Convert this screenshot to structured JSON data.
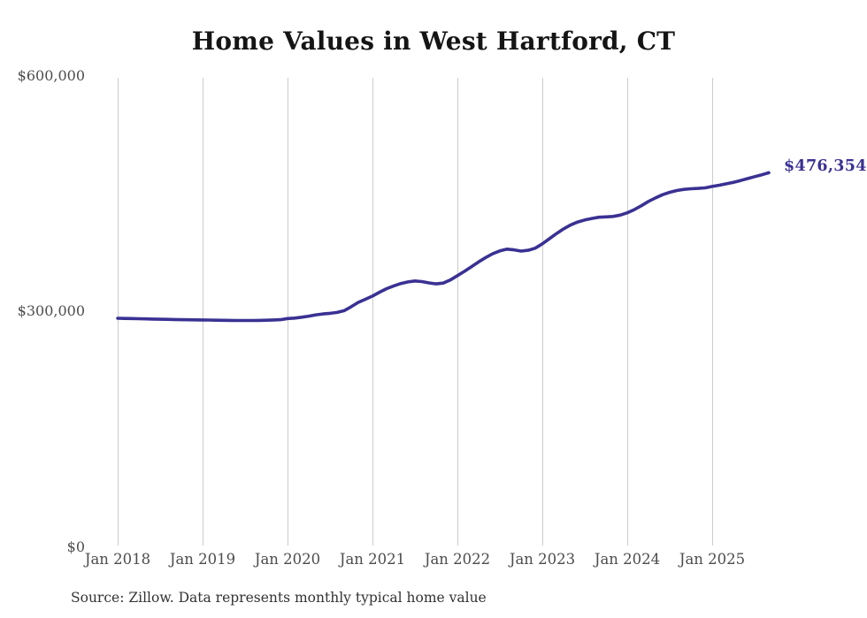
{
  "page": {
    "source_note": "Source: Zillow. Data represents monthly typical home value",
    "end_value_label": "$476,354"
  },
  "colors": {
    "line": "#3a3193",
    "grid": "#cccccc",
    "title_text": "#151515",
    "axis_text": "#4d4d4d",
    "end_label_text": "#3a3193",
    "source_text": "#333333",
    "background": "#ffffff"
  },
  "chart_data": {
    "type": "line",
    "title": "Home Values in West Hartford, CT",
    "xlabel": "",
    "ylabel": "",
    "x_unit": "month",
    "x_start": "2018-01",
    "x_end": "2025-09",
    "x_tick_labels": [
      "Jan 2018",
      "Jan 2019",
      "Jan 2020",
      "Jan 2021",
      "Jan 2022",
      "Jan 2023",
      "Jan 2024",
      "Jan 2025"
    ],
    "y_ticks": [
      {
        "label": "$0",
        "value": 0
      },
      {
        "label": "$300,000",
        "value": 300000
      },
      {
        "label": "$600,000",
        "value": 600000
      }
    ],
    "ylim": [
      0,
      600000
    ],
    "grid": "vertical-only",
    "legend": false,
    "final_value": 476354,
    "final_value_label": "$476,354",
    "series": [
      {
        "name": "Typical home value",
        "values": [
          291300,
          291100,
          290900,
          290700,
          290500,
          290300,
          290100,
          289900,
          289700,
          289500,
          289400,
          289300,
          289200,
          289000,
          288800,
          288700,
          288600,
          288500,
          288500,
          288500,
          288600,
          288800,
          289100,
          289500,
          291000,
          291500,
          292600,
          294000,
          295700,
          296800,
          297600,
          298700,
          301000,
          306000,
          311500,
          315500,
          319500,
          324500,
          329000,
          332500,
          335500,
          337500,
          338800,
          338000,
          336300,
          335000,
          336000,
          340000,
          345500,
          351000,
          357000,
          363000,
          368500,
          373500,
          377000,
          379200,
          378300,
          376800,
          377800,
          380500,
          386000,
          392500,
          399000,
          405000,
          410000,
          413800,
          416300,
          418300,
          419800,
          420300,
          420800,
          422500,
          425500,
          429500,
          434500,
          440000,
          444500,
          448500,
          451500,
          453800,
          455300,
          456000,
          456500,
          457200,
          459000,
          460500,
          462300,
          464300,
          466500,
          469000,
          471400,
          473800,
          476354
        ]
      }
    ]
  }
}
